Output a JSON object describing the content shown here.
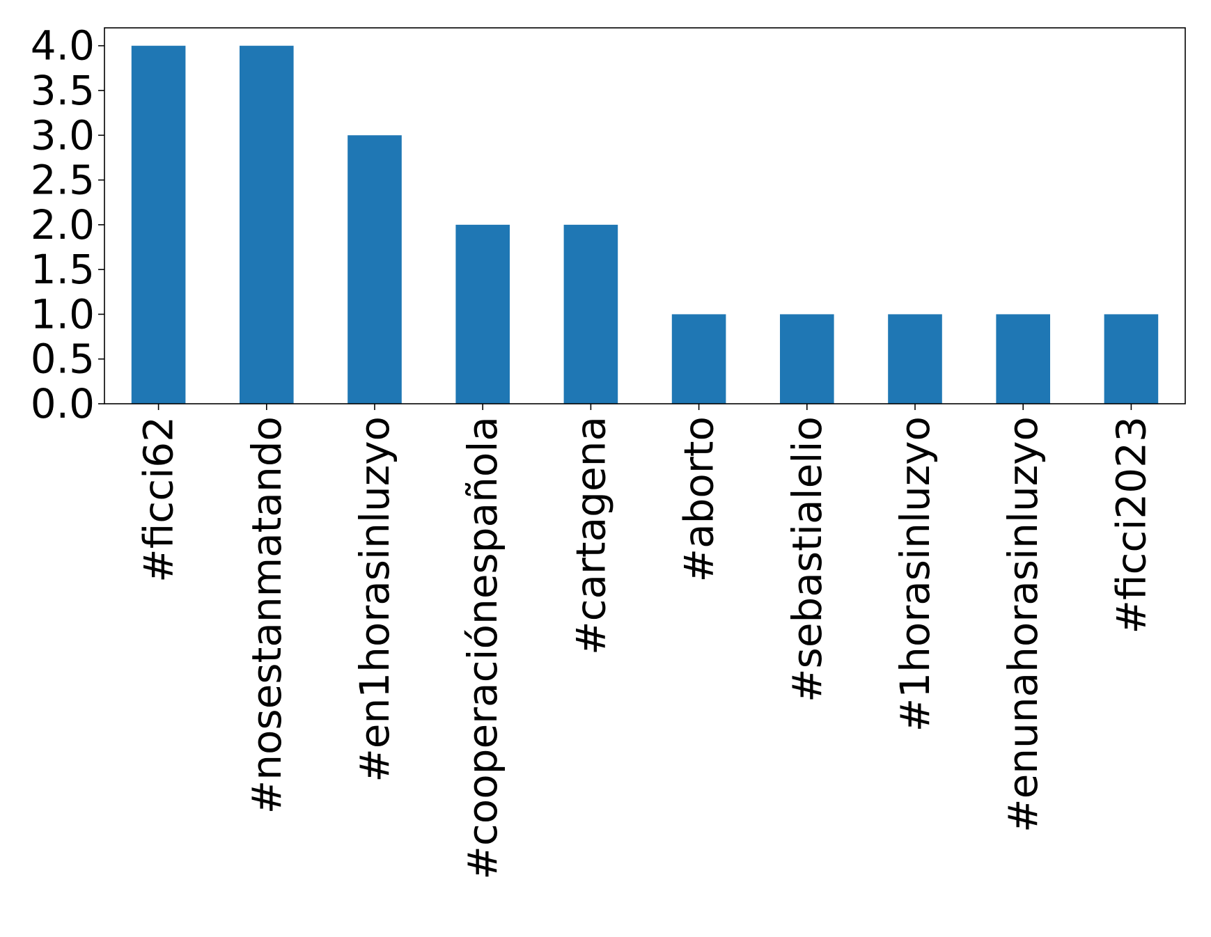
{
  "chart_data": {
    "type": "bar",
    "categories": [
      "#ficci62",
      "#nosestanmatando",
      "#en1horasinluzyo",
      "#cooperaciónespañola",
      "#cartagena",
      "#aborto",
      "#sebastialelio",
      "#1horasinluzyo",
      "#enunahorasinluzyo",
      "#ficci2023"
    ],
    "values": [
      4,
      4,
      3,
      2,
      2,
      1,
      1,
      1,
      1,
      1
    ],
    "title": "",
    "xlabel": "",
    "ylabel": "",
    "ylim": [
      0,
      4.2
    ],
    "yticks": [
      "0.0",
      "0.5",
      "1.0",
      "1.5",
      "2.0",
      "2.5",
      "3.0",
      "3.5",
      "4.0"
    ],
    "grid": false,
    "legend": "none",
    "colors": {
      "bar": "#1f77b4",
      "axes": "#000000",
      "background": "#ffffff"
    }
  }
}
